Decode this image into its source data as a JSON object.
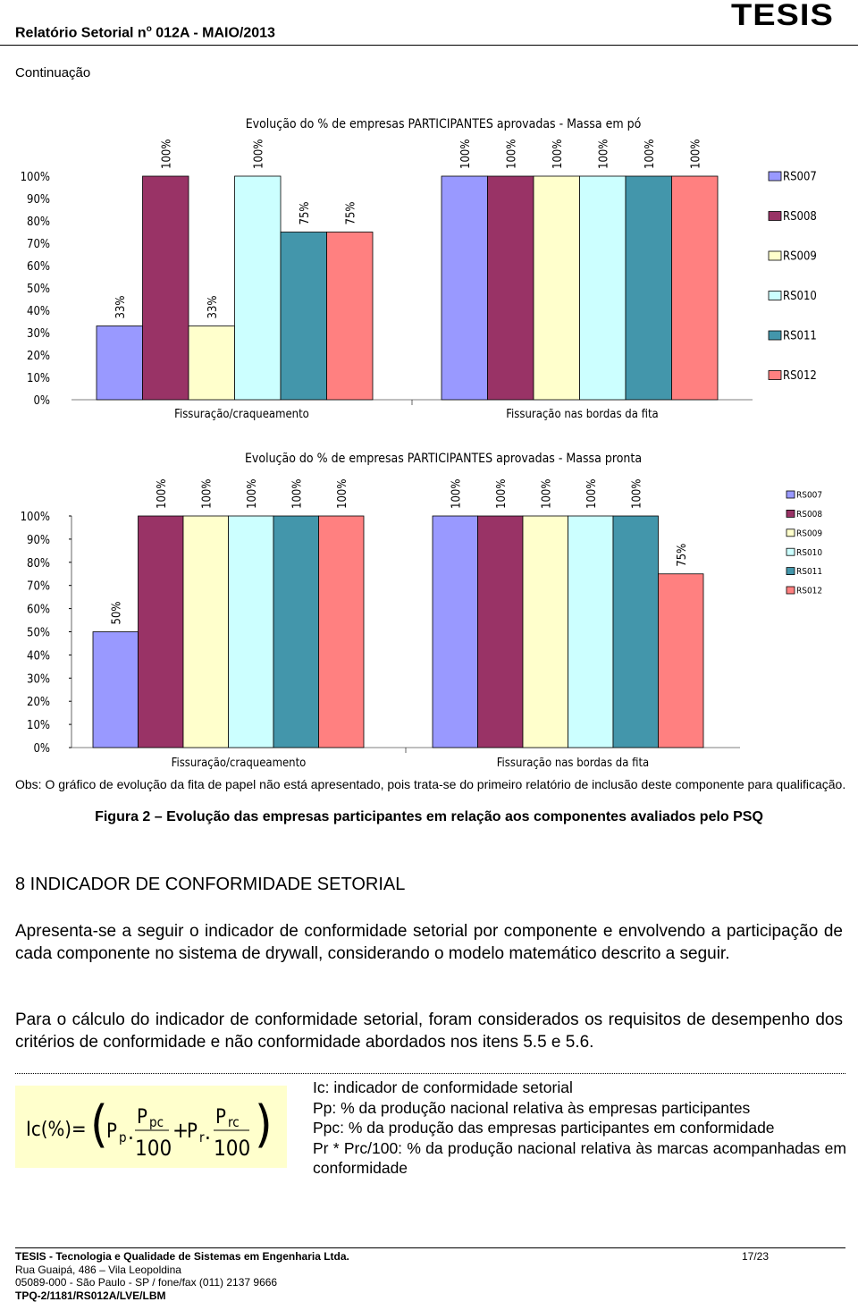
{
  "header": {
    "title": "Relatório Setorial n",
    "title_sup": "o",
    "title_rest": " 012A - MAIO/2013",
    "logo": "TESIS"
  },
  "continuation": "Continuação",
  "chart_data": [
    {
      "type": "bar",
      "title": "Evolução do % de empresas PARTICIPANTES aprovadas - Massa em pó",
      "categories": [
        "Fissuração/craqueamento",
        "Fissuração nas bordas da fita"
      ],
      "series": [
        {
          "name": "RS007",
          "color": "#9999ff",
          "values": [
            33,
            100
          ],
          "value_labels": [
            "33%",
            "100%"
          ]
        },
        {
          "name": "RS008",
          "color": "#993366",
          "values": [
            100,
            100
          ],
          "value_labels": [
            "100%",
            "100%"
          ]
        },
        {
          "name": "RS009",
          "color": "#ffffcc",
          "values": [
            33,
            100
          ],
          "value_labels": [
            "33%",
            "100%"
          ]
        },
        {
          "name": "RS010",
          "color": "#ccffff",
          "values": [
            100,
            100
          ],
          "value_labels": [
            "100%",
            "100%"
          ]
        },
        {
          "name": "RS011",
          "color": "#4396ab",
          "values": [
            75,
            100
          ],
          "value_labels": [
            "75%",
            "100%"
          ]
        },
        {
          "name": "RS012",
          "color": "#ff8080",
          "values": [
            75,
            100
          ],
          "value_labels": [
            "75%",
            "100%"
          ]
        }
      ],
      "ylim": [
        0,
        100
      ],
      "yticks": [
        {
          "value": 0,
          "label": "0%"
        },
        {
          "value": 10,
          "label": "10%"
        },
        {
          "value": 20,
          "label": "20%"
        },
        {
          "value": 30,
          "label": "30%"
        },
        {
          "value": 40,
          "label": "40%"
        },
        {
          "value": 50,
          "label": "50%"
        },
        {
          "value": 60,
          "label": "60%"
        },
        {
          "value": 70,
          "label": "70%"
        },
        {
          "value": 80,
          "label": "80%"
        },
        {
          "value": 90,
          "label": "90%"
        },
        {
          "value": 100,
          "label": "100%"
        }
      ],
      "legend": "right"
    },
    {
      "type": "bar",
      "title": "Evolução do % de empresas PARTICIPANTES aprovadas - Massa pronta",
      "categories": [
        "Fissuração/craqueamento",
        "Fissuração nas bordas da fita"
      ],
      "series": [
        {
          "name": "RS007",
          "color": "#9999ff",
          "values": [
            50,
            100
          ],
          "value_labels": [
            "50%",
            "100%"
          ]
        },
        {
          "name": "RS008",
          "color": "#993366",
          "values": [
            100,
            100
          ],
          "value_labels": [
            "100%",
            "100%"
          ]
        },
        {
          "name": "RS009",
          "color": "#ffffcc",
          "values": [
            100,
            100
          ],
          "value_labels": [
            "100%",
            "100%"
          ]
        },
        {
          "name": "RS010",
          "color": "#ccffff",
          "values": [
            100,
            100
          ],
          "value_labels": [
            "100%",
            "100%"
          ]
        },
        {
          "name": "RS011",
          "color": "#4396ab",
          "values": [
            100,
            100
          ],
          "value_labels": [
            "100%",
            "100%"
          ]
        },
        {
          "name": "RS012",
          "color": "#ff8080",
          "values": [
            100,
            75
          ],
          "value_labels": [
            "100%",
            "75%"
          ]
        }
      ],
      "ylim": [
        0,
        100
      ],
      "yticks": [
        {
          "value": 0,
          "label": "0%"
        },
        {
          "value": 10,
          "label": "10%"
        },
        {
          "value": 20,
          "label": "20%"
        },
        {
          "value": 30,
          "label": "30%"
        },
        {
          "value": 40,
          "label": "40%"
        },
        {
          "value": 50,
          "label": "50%"
        },
        {
          "value": 60,
          "label": "60%"
        },
        {
          "value": 70,
          "label": "70%"
        },
        {
          "value": 80,
          "label": "80%"
        },
        {
          "value": 90,
          "label": "90%"
        },
        {
          "value": 100,
          "label": "100%"
        }
      ],
      "legend": "right"
    }
  ],
  "obs": "Obs: O gráfico de evolução da fita de papel não está apresentado, pois trata-se do primeiro relatório de inclusão deste componente para qualificação.",
  "figure_caption": "Figura 2 – Evolução das empresas participantes em relação aos componentes avaliados pelo PSQ",
  "section_heading": "8 INDICADOR DE CONFORMIDADE SETORIAL",
  "paragraphs": [
    "Apresenta-se a seguir o indicador de conformidade setorial por componente e envolvendo a participação de cada componente no sistema de drywall, considerando o modelo matemático descrito a seguir.",
    "Para o cálculo do indicador de conformidade setorial, foram considerados os requisitos de desempenho dos critérios de conformidade e não conformidade abordados nos itens 5.5 e 5.6."
  ],
  "formula": {
    "lhs": "Ic(%)=",
    "p1": "P",
    "p1_sub": "p",
    "n1": "P",
    "n1_sub": "pc",
    "d1": "100",
    "plus": "+",
    "p2": "P",
    "p2_sub": "r",
    "n2": "P",
    "n2_sub": "rc",
    "d2": "100",
    "dot": "."
  },
  "definitions": [
    "Ic: indicador de conformidade setorial",
    "Pp: % da produção nacional relativa às empresas participantes",
    "Ppc: % da produção das empresas participantes em conformidade",
    "Pr * Prc/100: % da produção nacional relativa às marcas acompanhadas em conformidade"
  ],
  "footer": {
    "company": "TESIS - Tecnologia e Qualidade de Sistemas em Engenharia Ltda.",
    "page": "17/23",
    "address": "Rua Guaipá, 486 – Vila Leopoldina",
    "contact": "05089-000 - São Paulo - SP / fone/fax (011) 2137 9666",
    "code": "TPQ-2/1181/RS012A/LVE/LBM"
  }
}
